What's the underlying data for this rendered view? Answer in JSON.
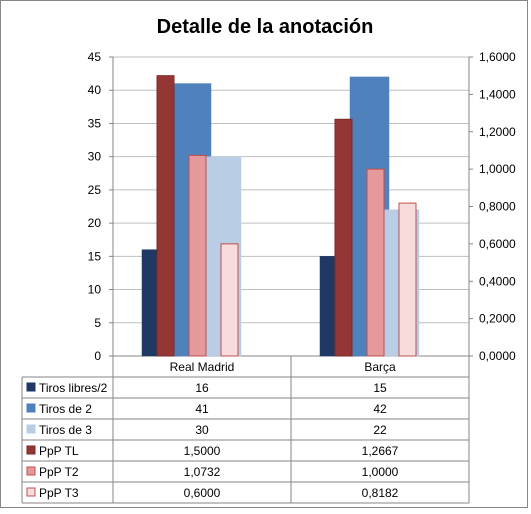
{
  "chart_data": {
    "type": "bar",
    "title": "Detalle de la anotación",
    "categories": [
      "Real Madrid",
      "Barça"
    ],
    "primary_axis": {
      "min": 0,
      "max": 45,
      "step": 5,
      "ticks": [
        "0",
        "5",
        "10",
        "15",
        "20",
        "25",
        "30",
        "35",
        "40",
        "45"
      ]
    },
    "secondary_axis": {
      "min": 0,
      "max": 1.6,
      "step": 0.2,
      "ticks": [
        "0,0000",
        "0,2000",
        "0,4000",
        "0,6000",
        "0,8000",
        "1,0000",
        "1,2000",
        "1,4000",
        "1,6000"
      ]
    },
    "grid": true,
    "legend": "table-below",
    "series": [
      {
        "name": "Tiros libres/2",
        "axis": "primary",
        "values": [
          16,
          15
        ],
        "display": [
          "16",
          "15"
        ],
        "color": "#1f3864",
        "stroke": "#1f3864"
      },
      {
        "name": "Tiros de 2",
        "axis": "primary",
        "values": [
          41,
          42
        ],
        "display": [
          "41",
          "42"
        ],
        "color": "#4f81bd",
        "stroke": "#4f81bd"
      },
      {
        "name": "Tiros de 3",
        "axis": "primary",
        "values": [
          30,
          22
        ],
        "display": [
          "30",
          "22"
        ],
        "color": "#b9cde5",
        "stroke": "#b9cde5"
      },
      {
        "name": "PpP TL",
        "axis": "secondary",
        "values": [
          1.5,
          1.2667
        ],
        "display": [
          "1,5000",
          "1,2667"
        ],
        "color": "#943634",
        "stroke": "#7a2a28"
      },
      {
        "name": "PpP T2",
        "axis": "secondary",
        "values": [
          1.0732,
          1.0
        ],
        "display": [
          "1,0732",
          "1,0000"
        ],
        "color": "#e6999b",
        "stroke": "#c0504d"
      },
      {
        "name": "PpP T3",
        "axis": "secondary",
        "values": [
          0.6,
          0.8182
        ],
        "display": [
          "0,6000",
          "0,8182"
        ],
        "color": "#f8dcdc",
        "stroke": "#c0504d"
      }
    ]
  }
}
